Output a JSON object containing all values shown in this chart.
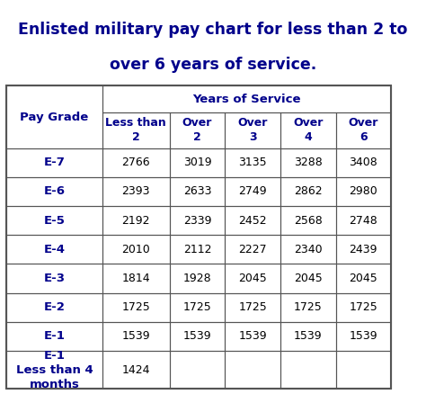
{
  "title_line1": "Enlisted military pay chart for less than 2 to",
  "title_line2": "over 6 years of service.",
  "title_color": "#00008B",
  "background_color": "#FFFFFF",
  "col_headers_row2": [
    "Pay Grade",
    "Less than\n2",
    "Over\n2",
    "Over\n3",
    "Over\n4",
    "Over\n6"
  ],
  "rows": [
    [
      "E-7",
      "2766",
      "3019",
      "3135",
      "3288",
      "3408"
    ],
    [
      "E-6",
      "2393",
      "2633",
      "2749",
      "2862",
      "2980"
    ],
    [
      "E-5",
      "2192",
      "2339",
      "2452",
      "2568",
      "2748"
    ],
    [
      "E-4",
      "2010",
      "2112",
      "2227",
      "2340",
      "2439"
    ],
    [
      "E-3",
      "1814",
      "1928",
      "2045",
      "2045",
      "2045"
    ],
    [
      "E-2",
      "1725",
      "1725",
      "1725",
      "1725",
      "1725"
    ],
    [
      "E-1",
      "1539",
      "1539",
      "1539",
      "1539",
      "1539"
    ],
    [
      "E-1\nLess than 4\nmonths",
      "1424",
      "",
      "",
      "",
      ""
    ]
  ],
  "text_color": "#00008B",
  "cell_text_color": "#000000",
  "border_color": "#555555",
  "font_size_title": 12.5,
  "font_size_header": 9,
  "font_size_cell": 9
}
